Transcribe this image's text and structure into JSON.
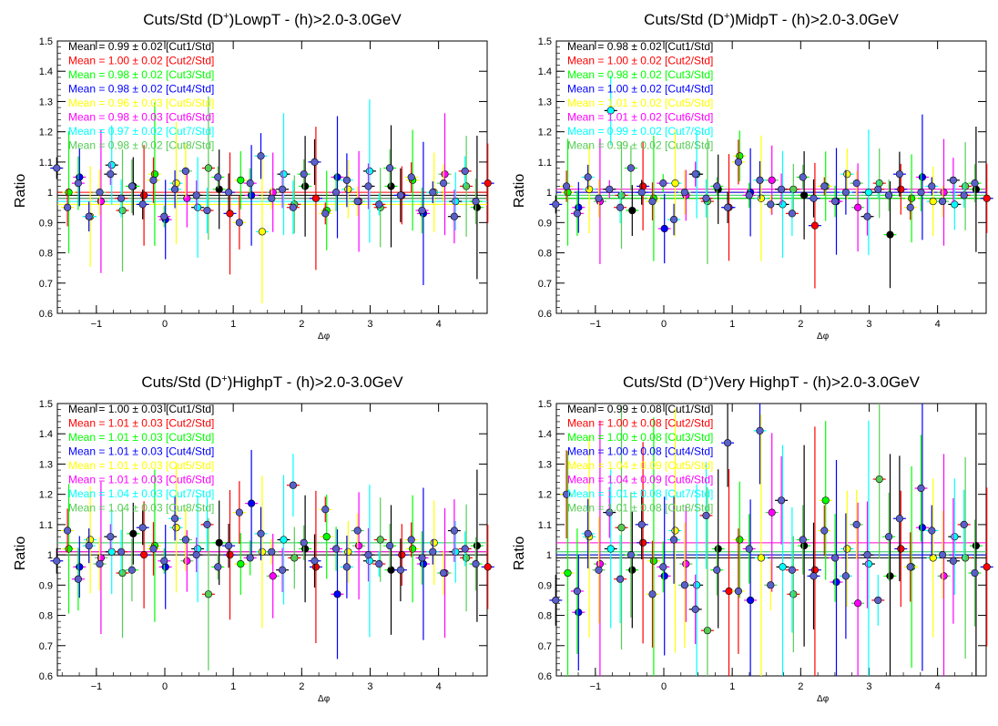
{
  "colors": {
    "cut1": "#000000",
    "cut2": "#ff0000",
    "cut3": "#00ff00",
    "cut4": "#0000ff",
    "cut5": "#ffff00",
    "cut6": "#ff00ff",
    "cut7": "#00ffff",
    "cut8": "#55cc55",
    "marker_fill": "#5a60c8"
  },
  "chart_data": [
    {
      "type": "scatter",
      "title_main": "Cuts/Std (D",
      "title_sup": "+",
      "title_rest": ")LowpT - (h)>2.0-3.0GeV",
      "xlabel": "Δφ",
      "ylabel": "Ratio",
      "xlim": [
        -1.57,
        4.71
      ],
      "ylim": [
        0.6,
        1.5
      ],
      "xticks": [
        -1,
        0,
        1,
        2,
        3,
        4
      ],
      "yticks": [
        0.6,
        0.7,
        0.8,
        0.9,
        1,
        1.1,
        1.2,
        1.3,
        1.4,
        1.5
      ],
      "grid": false,
      "legend": "top-left",
      "legend_entries": [
        "Mean = 0.99 ± 0.02 [Cut1/Std]",
        "Mean = 1.00 ± 0.02 [Cut2/Std]",
        "Mean = 0.98 ± 0.02 [Cut3/Std]",
        "Mean = 0.98 ± 0.02 [Cut4/Std]",
        "Mean = 0.96 ± 0.03 [Cut5/Std]",
        "Mean = 0.98 ± 0.03 [Cut6/Std]",
        "Mean = 0.97 ± 0.02 [Cut7/Std]",
        "Mean = 0.98 ± 0.02 [Cut8/Std]"
      ],
      "means": [
        0.99,
        1.0,
        0.98,
        0.98,
        0.96,
        0.98,
        0.97,
        0.98
      ],
      "series_a": [
        1.08,
        0.95,
        1.03,
        0.92,
        1.0,
        1.06,
        0.98,
        1.02,
        0.96,
        1.04,
        0.92,
        1.01,
        1.07,
        0.99,
        0.94,
        1.05,
        1.0,
        0.9,
        1.03,
        1.12,
        0.98,
        1.01,
        0.95,
        1.06,
        1.1,
        0.93,
        1.0,
        1.04,
        0.97,
        1.02,
        0.96,
        1.08,
        0.99,
        1.05,
        0.94,
        1.0,
        1.03,
        0.92,
        1.07,
        0.97
      ],
      "series_b": [
        1.0,
        1.05,
        0.92,
        0.97,
        1.09,
        0.94,
        1.02,
        0.99,
        1.06,
        0.91,
        1.03,
        0.98,
        0.95,
        1.08,
        1.01,
        0.93,
        1.04,
        0.99,
        0.87,
        1.0,
        1.06,
        0.96,
        1.02,
        0.98,
        0.94,
        1.05,
        1.01,
        0.97,
        1.07,
        0.95,
        1.02,
        0.99,
        1.04,
        0.93,
        1.0,
        1.06,
        0.97,
        1.02,
        0.95,
        1.03
      ],
      "err_a": 0.06,
      "err_b": 0.16
    },
    {
      "type": "scatter",
      "title_main": "Cuts/Std (D",
      "title_sup": "+",
      "title_rest": ")MidpT - (h)>2.0-3.0GeV",
      "xlabel": "Δφ",
      "ylabel": "Ratio",
      "xlim": [
        -1.57,
        4.71
      ],
      "ylim": [
        0.6,
        1.5
      ],
      "xticks": [
        -1,
        0,
        1,
        2,
        3,
        4
      ],
      "yticks": [
        0.6,
        0.7,
        0.8,
        0.9,
        1,
        1.1,
        1.2,
        1.3,
        1.4,
        1.5
      ],
      "grid": false,
      "legend": "top-left",
      "legend_entries": [
        "Mean = 0.98 ± 0.02 [Cut1/Std]",
        "Mean = 1.00 ± 0.02 [Cut2/Std]",
        "Mean = 0.98 ± 0.02 [Cut3/Std]",
        "Mean = 1.00 ± 0.02 [Cut4/Std]",
        "Mean = 1.01 ± 0.02 [Cut5/Std]",
        "Mean = 1.01 ± 0.02 [Cut6/Std]",
        "Mean = 0.99 ± 0.02 [Cut7/Std]",
        "Mean = 0.99 ± 0.02 [Cut8/Std]"
      ],
      "means": [
        0.98,
        1.0,
        0.98,
        1.0,
        1.01,
        1.01,
        0.99,
        0.99
      ],
      "series_a": [
        0.96,
        1.02,
        0.93,
        1.05,
        0.98,
        1.01,
        0.95,
        1.08,
        1.0,
        0.97,
        1.03,
        0.91,
        1.0,
        1.06,
        0.98,
        1.02,
        0.95,
        1.1,
        0.99,
        1.04,
        0.96,
        1.01,
        0.93,
        1.05,
        0.98,
        1.02,
        0.97,
        1.0,
        1.03,
        0.92,
        1.01,
        0.99,
        1.06,
        0.95,
        1.0,
        1.02,
        0.97,
        1.04,
        0.99,
        1.03
      ],
      "series_b": [
        1.0,
        0.95,
        1.01,
        0.97,
        1.27,
        0.99,
        0.94,
        1.02,
        0.98,
        0.88,
        1.03,
        0.99,
        1.06,
        0.97,
        1.01,
        0.95,
        1.12,
        1.0,
        0.98,
        1.04,
        0.96,
        1.01,
        0.99,
        0.89,
        1.02,
        0.97,
        1.06,
        0.95,
        1.0,
        1.03,
        0.86,
        1.01,
        0.98,
        1.05,
        0.97,
        1.0,
        0.96,
        1.02,
        1.01,
        0.98
      ],
      "err_a": 0.05,
      "err_b": 0.14
    },
    {
      "type": "scatter",
      "title_main": "Cuts/Std (D",
      "title_sup": "+",
      "title_rest": ")HighpT - (h)>2.0-3.0GeV",
      "xlabel": "Δφ",
      "ylabel": "Ratio",
      "xlim": [
        -1.57,
        4.71
      ],
      "ylim": [
        0.6,
        1.5
      ],
      "xticks": [
        -1,
        0,
        1,
        2,
        3,
        4
      ],
      "yticks": [
        0.6,
        0.7,
        0.8,
        0.9,
        1,
        1.1,
        1.2,
        1.3,
        1.4,
        1.5
      ],
      "grid": false,
      "legend": "top-left",
      "legend_entries": [
        "Mean = 1.00 ± 0.03 [Cut1/Std]",
        "Mean = 1.01 ± 0.03 [Cut2/Std]",
        "Mean = 1.01 ± 0.03 [Cut3/Std]",
        "Mean = 1.01 ± 0.03 [Cut4/Std]",
        "Mean = 1.01 ± 0.03 [Cut5/Std]",
        "Mean = 1.01 ± 0.03 [Cut6/Std]",
        "Mean = 1.04 ± 0.03 [Cut7/Std]",
        "Mean = 1.04 ± 0.03 [Cut8/Std]"
      ],
      "means": [
        1.0,
        1.01,
        1.01,
        1.01,
        1.01,
        1.01,
        1.04,
        1.04
      ],
      "series_a": [
        0.98,
        1.08,
        0.92,
        1.03,
        0.97,
        1.06,
        1.01,
        0.95,
        1.09,
        1.02,
        0.98,
        1.12,
        1.05,
        1.0,
        1.1,
        0.96,
        1.03,
        1.14,
        0.99,
        1.07,
        1.01,
        0.95,
        1.23,
        1.04,
        0.98,
        1.15,
        1.02,
        0.96,
        1.08,
        1.0,
        0.97,
        1.03,
        0.95,
        1.05,
        0.99,
        1.01,
        0.94,
        1.08,
        1.02,
        0.97
      ],
      "series_b": [
        1.02,
        0.96,
        1.05,
        0.99,
        1.01,
        0.94,
        1.07,
        1.0,
        1.03,
        0.96,
        1.09,
        0.98,
        1.02,
        0.87,
        1.04,
        1.0,
        0.97,
        1.17,
        1.01,
        0.93,
        1.05,
        0.99,
        1.02,
        0.96,
        1.06,
        0.87,
        1.01,
        1.03,
        0.98,
        1.05,
        0.95,
        1.0,
        1.02,
        0.97,
        1.04,
        0.94,
        1.01,
        0.99,
        1.03,
        0.96
      ],
      "err_a": 0.07,
      "err_b": 0.17
    },
    {
      "type": "scatter",
      "title_main": "Cuts/Std (D",
      "title_sup": "+",
      "title_rest": ")Very HighpT - (h)>2.0-3.0GeV",
      "xlabel": "Δφ",
      "ylabel": "Ratio",
      "xlim": [
        -1.57,
        4.71
      ],
      "ylim": [
        0.6,
        1.5
      ],
      "xticks": [
        -1,
        0,
        1,
        2,
        3,
        4
      ],
      "yticks": [
        0.6,
        0.7,
        0.8,
        0.9,
        1,
        1.1,
        1.2,
        1.3,
        1.4,
        1.5
      ],
      "grid": false,
      "legend": "top-left",
      "legend_entries": [
        "Mean = 0.99 ± 0.08 [Cut1/Std]",
        "Mean = 1.00 ± 0.08 [Cut2/Std]",
        "Mean = 1.00 ± 0.08 [Cut3/Std]",
        "Mean = 1.00 ± 0.08 [Cut4/Std]",
        "Mean = 1.04 ± 0.09 [Cut5/Std]",
        "Mean = 1.04 ± 0.09 [Cut6/Std]",
        "Mean = 1.01 ± 0.08 [Cut7/Std]",
        "Mean = 1.01 ± 0.08 [Cut8/Std]"
      ],
      "means": [
        0.99,
        1.0,
        1.0,
        1.0,
        1.04,
        1.04,
        1.01,
        1.01
      ],
      "series_a": [
        0.85,
        1.2,
        0.88,
        1.07,
        0.95,
        1.14,
        0.92,
        1.0,
        1.1,
        0.87,
        0.96,
        1.05,
        0.9,
        0.82,
        1.13,
        0.95,
        1.37,
        0.88,
        1.02,
        1.41,
        0.9,
        1.18,
        0.95,
        1.05,
        0.93,
        1.08,
        0.99,
        0.93,
        1.1,
        1.0,
        0.85,
        1.06,
        1.12,
        0.96,
        1.22,
        1.08,
        1.0,
        0.98,
        1.1,
        0.94
      ],
      "series_b": [
        0.94,
        0.81,
        1.06,
        0.97,
        1.02,
        1.09,
        0.95,
        1.04,
        0.98,
        0.93,
        1.08,
        0.97,
        0.9,
        0.75,
        1.02,
        0.88,
        1.05,
        0.85,
        0.99,
        1.14,
        0.96,
        0.87,
        1.03,
        0.95,
        1.18,
        0.91,
        1.02,
        0.84,
        0.97,
        1.25,
        0.93,
        1.02,
        0.96,
        1.09,
        0.99,
        0.93,
        1.06,
        0.99,
        1.03,
        0.96
      ],
      "err_a": 0.14,
      "err_b": 0.32
    }
  ]
}
